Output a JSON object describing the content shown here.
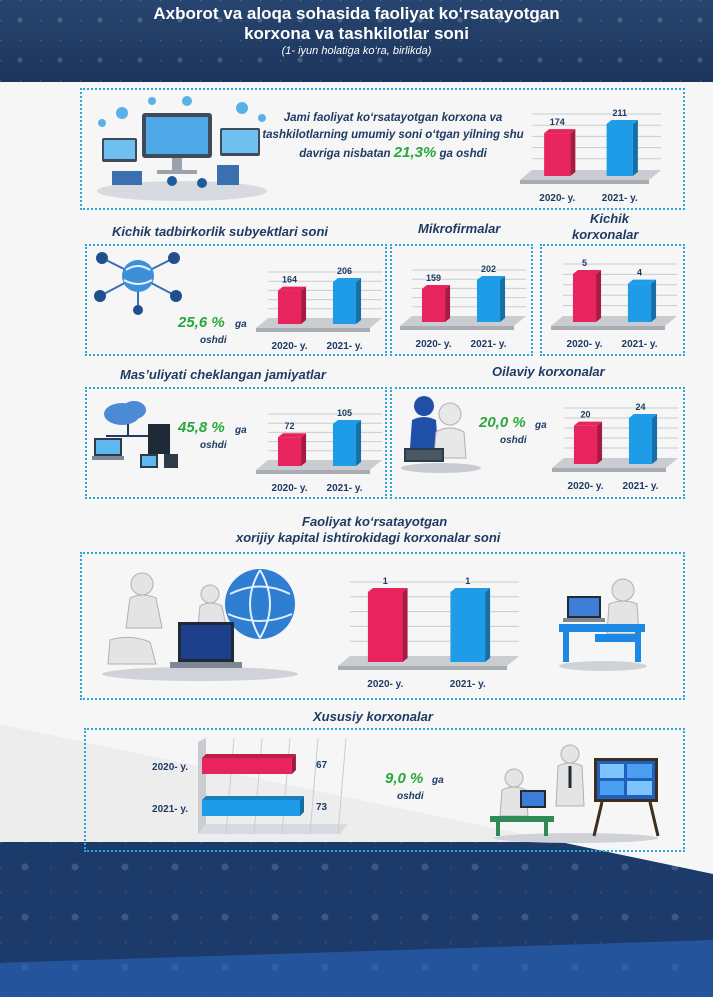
{
  "header": {
    "title_line1": "Axborot va aloqa sohasida faoliyat ko‘rsatayotgan",
    "title_line2": "korxona va tashkilotlar soni",
    "subtitle": "(1- iyun holatiga ko‘ra, birlikda)"
  },
  "colors": {
    "y2020": "#e8245f",
    "y2021": "#1e9ce8",
    "green": "#27a83a",
    "navy": "#1f3b63",
    "box_border": "#2aa7d6"
  },
  "total": {
    "text_pre": "Jami faoliyat ko‘rsatayotgan korxona va tashkilotlarning umumiy soni o‘tgan yilning shu davriga nisbatan",
    "pct": "21,3%",
    "text_post": "ga oshdi"
  },
  "small_business": {
    "title": "Kichik tadbirkorlik subyektlari soni",
    "pct": "25,6 %",
    "suffix_a": "ga",
    "suffix_b": "oshdi"
  },
  "micro": {
    "title": "Mikrofirmalar"
  },
  "small_firms": {
    "title_line1": "Kichik",
    "title_line2": "korxonalar"
  },
  "llc": {
    "title": "Mas’uliyati cheklangan jamiyatlar",
    "pct": "45,8 %",
    "suffix_a": "ga",
    "suffix_b": "oshdi"
  },
  "family": {
    "title": "Oilaviy korxonalar",
    "pct": "20,0 %",
    "suffix_a": "ga",
    "suffix_b": "oshdi"
  },
  "foreign": {
    "title_line1": "Faoliyat ko‘rsatayotgan",
    "title_line2": "xorijiy kapital ishtirokidagi korxonalar soni"
  },
  "private": {
    "title": "Xususiy korxonalar",
    "pct": "9,0 %",
    "suffix_a": "ga",
    "suffix_b": "oshdi"
  },
  "chart_data": [
    {
      "id": "total",
      "type": "bar",
      "categories": [
        "2020- y.",
        "2021- y."
      ],
      "values": [
        174,
        211
      ]
    },
    {
      "id": "small_business",
      "type": "bar",
      "categories": [
        "2020- y.",
        "2021- y."
      ],
      "values": [
        164,
        206
      ]
    },
    {
      "id": "micro",
      "type": "bar",
      "categories": [
        "2020- y.",
        "2021- y."
      ],
      "values": [
        159,
        202
      ]
    },
    {
      "id": "small_firms",
      "type": "bar",
      "categories": [
        "2020- y.",
        "2021- y."
      ],
      "values": [
        5,
        4
      ]
    },
    {
      "id": "llc",
      "type": "bar",
      "categories": [
        "2020- y.",
        "2021- y."
      ],
      "values": [
        72,
        105
      ]
    },
    {
      "id": "family",
      "type": "bar",
      "categories": [
        "2020- y.",
        "2021- y."
      ],
      "values": [
        20,
        24
      ]
    },
    {
      "id": "foreign",
      "type": "bar",
      "categories": [
        "2020- y.",
        "2021- y."
      ],
      "values": [
        1,
        1
      ]
    },
    {
      "id": "private",
      "type": "bar",
      "orientation": "horizontal",
      "categories": [
        "2020- y.",
        "2021- y."
      ],
      "values": [
        67,
        73
      ]
    }
  ],
  "icons": [
    "devices-cloud-icon",
    "network-globe-icon",
    "cloud-computers-icon",
    "people-laptop-icon",
    "people-globe-icon",
    "person-laptop-icon",
    "people-whiteboard-icon"
  ]
}
